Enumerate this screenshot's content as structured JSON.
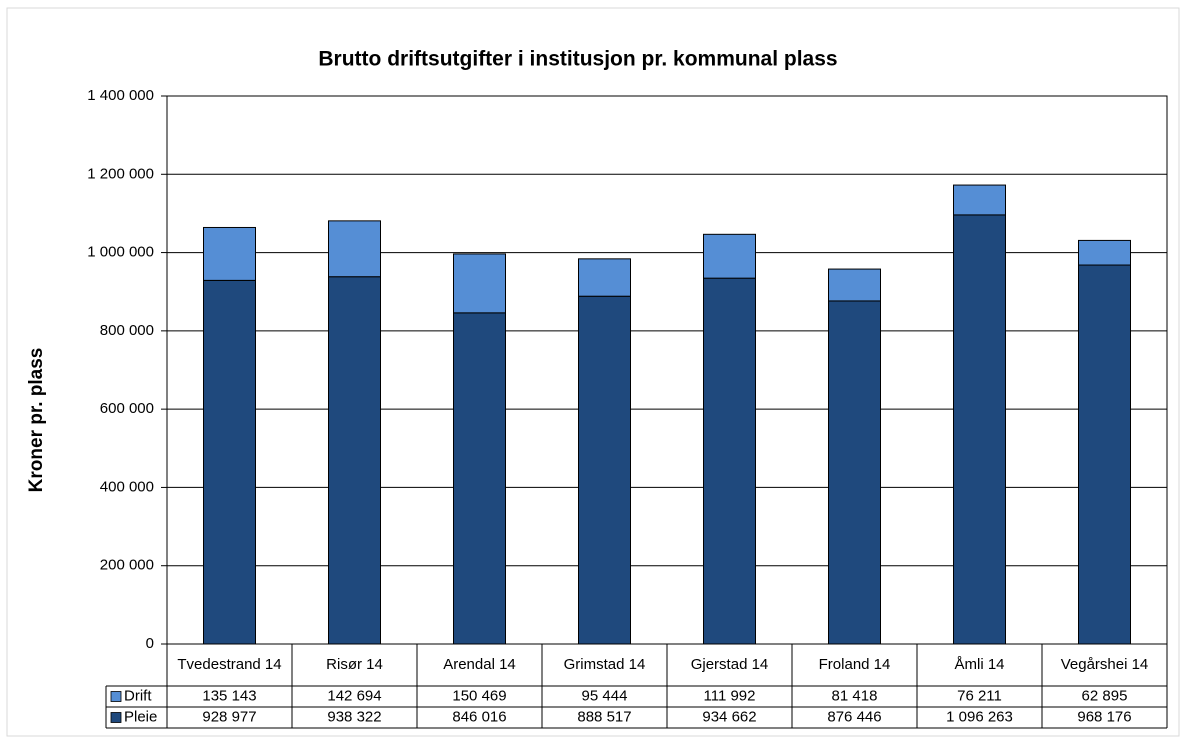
{
  "chart_data": {
    "type": "bar",
    "stacked": true,
    "title": "Brutto driftsutgifter i institusjon pr. kommunal plass",
    "y_label": "Kroner pr. plass",
    "categories": [
      "Tvedestrand 14",
      "Risør 14",
      "Arendal 14",
      "Grimstad 14",
      "Gjerstad 14",
      "Froland 14",
      "Åmli 14",
      "Vegårshei 14"
    ],
    "series": [
      {
        "name": "Drift",
        "color": "#558ed5",
        "values": [
          135143,
          142694,
          150469,
          95444,
          111992,
          81418,
          76211,
          62895
        ],
        "value_labels": [
          "135 143",
          "142 694",
          "150 469",
          "95 444",
          "111 992",
          "81 418",
          "76 211",
          "62 895"
        ]
      },
      {
        "name": "Pleie",
        "color": "#1f497d",
        "values": [
          928977,
          938322,
          846016,
          888517,
          934662,
          876446,
          1096263,
          968176
        ],
        "value_labels": [
          "928 977",
          "938 322",
          "846 016",
          "888 517",
          "934 662",
          "876 446",
          "1 096 263",
          "968 176"
        ]
      }
    ],
    "ylim": [
      0,
      1400000
    ],
    "yticks": [
      0,
      {
        "value": 200000,
        "label": "200 000"
      },
      {
        "value": 400000,
        "label": "400 000"
      },
      {
        "value": 600000,
        "label": "600 000"
      },
      {
        "value": 800000,
        "label": "800 000"
      },
      {
        "value": 1000000,
        "label": "1 000 000"
      },
      {
        "value": 1200000,
        "label": "1 200 000"
      },
      {
        "value": 1400000,
        "label": "1 400 000"
      }
    ],
    "grid": true
  }
}
